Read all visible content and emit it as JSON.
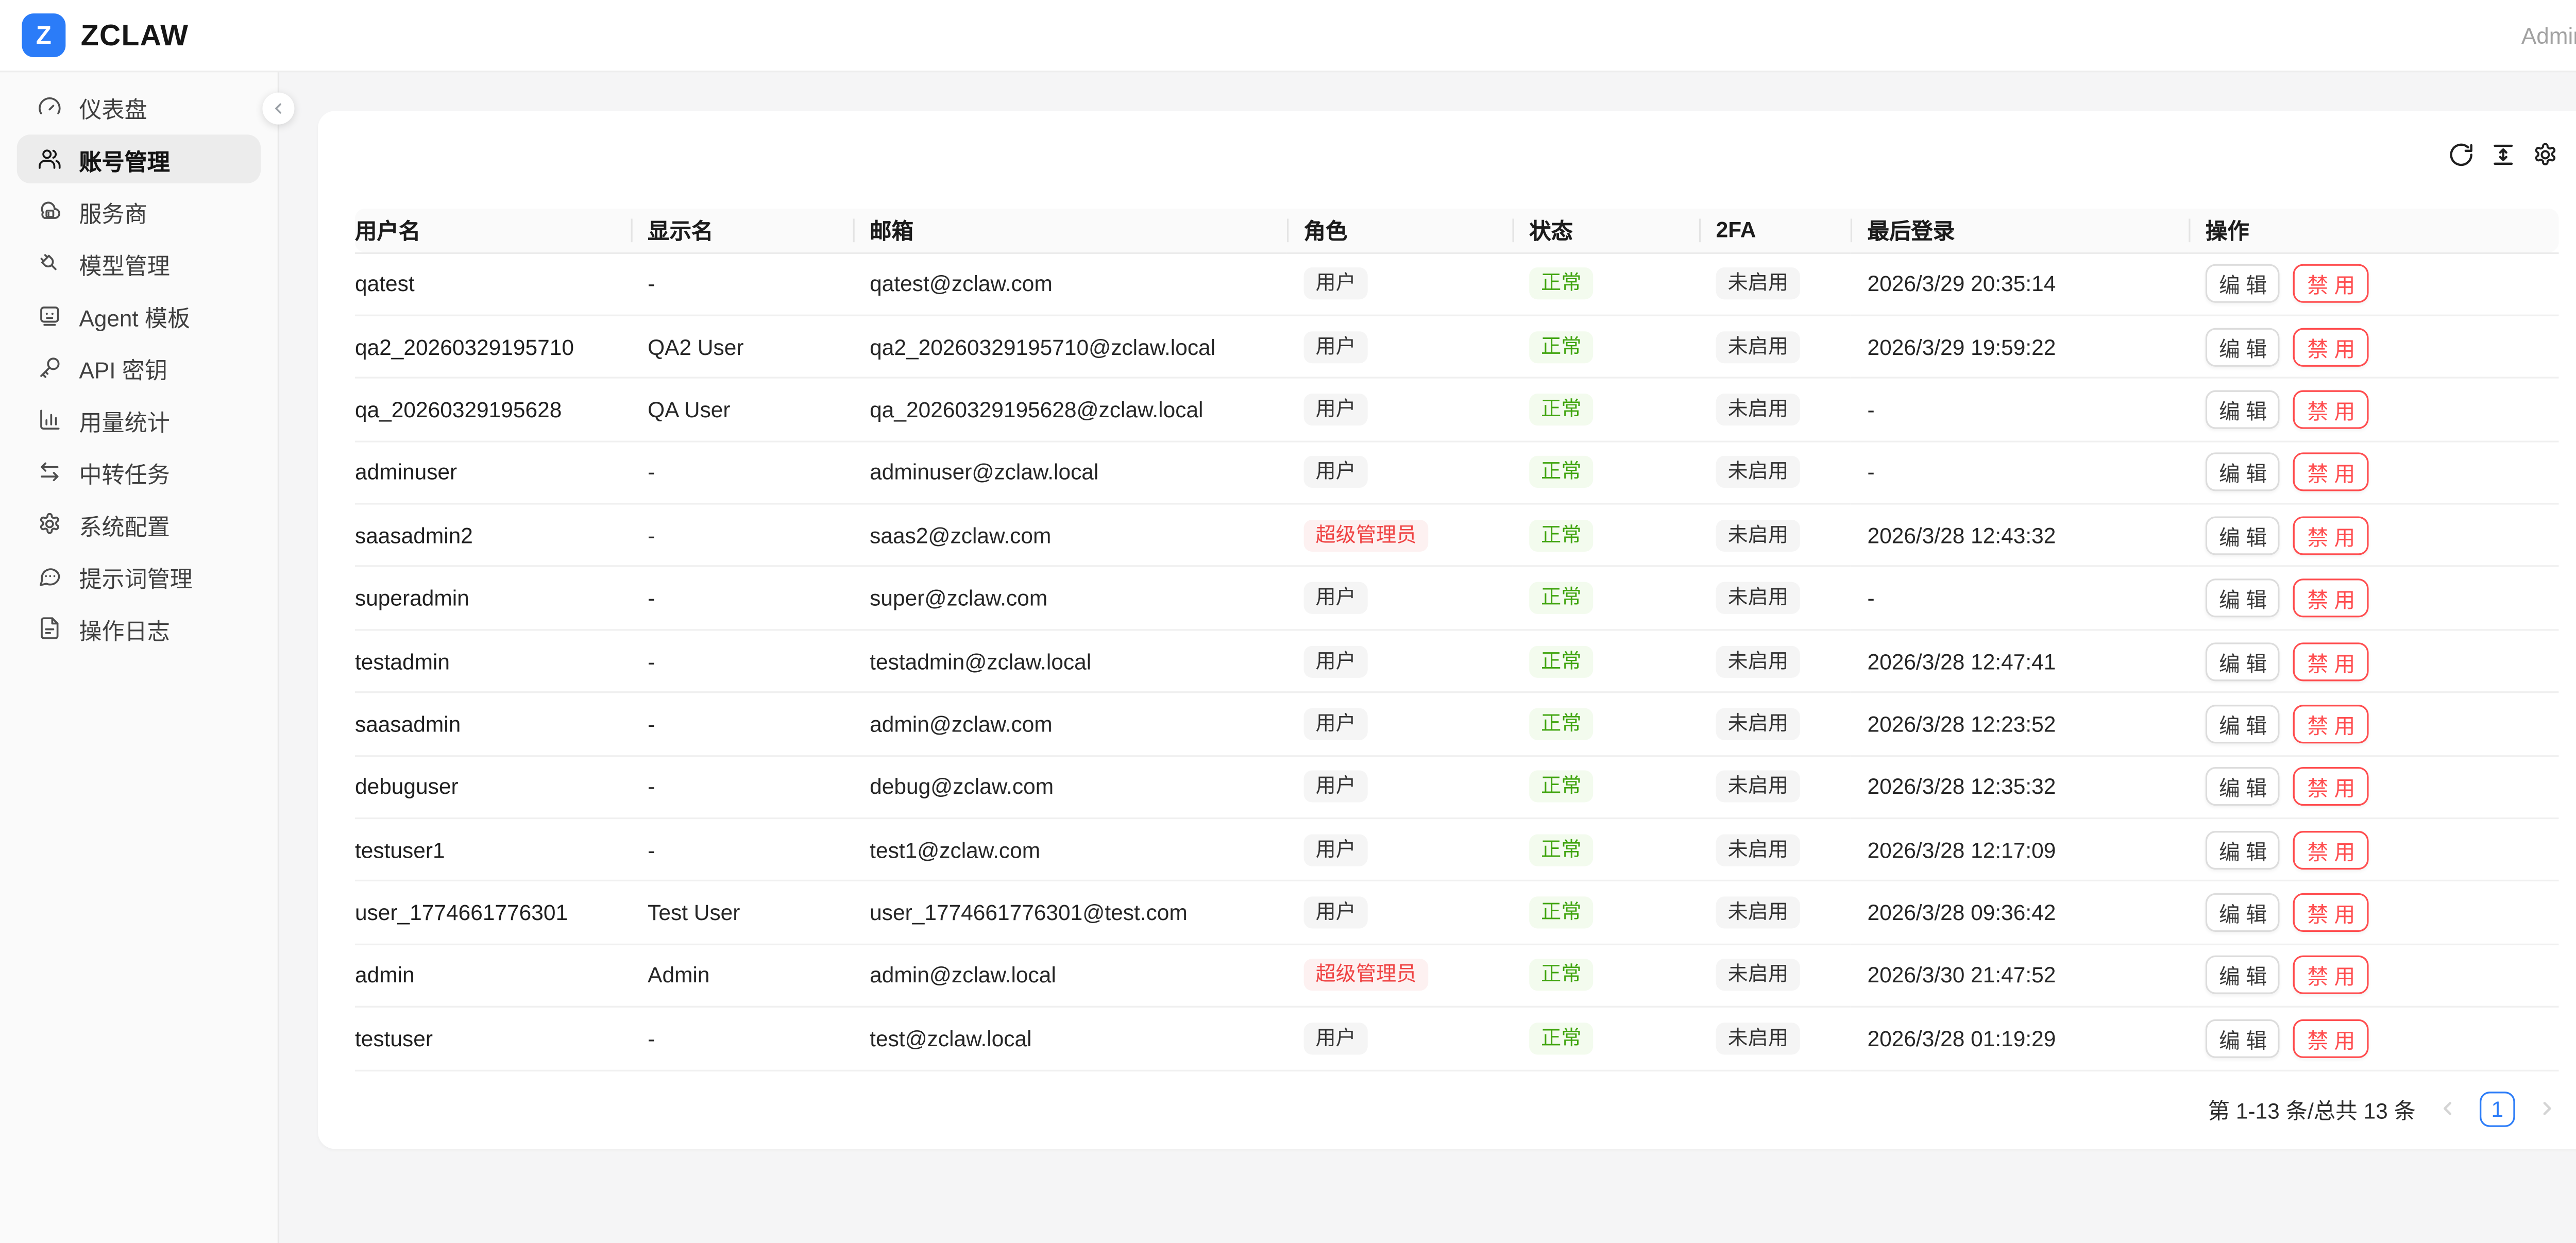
{
  "topbar": {
    "logo_letter": "Z",
    "brand": "ZCLAW",
    "user": "Admin"
  },
  "sidebar": {
    "items": [
      {
        "label": "仪表盘",
        "icon": "gauge",
        "active": false
      },
      {
        "label": "账号管理",
        "icon": "users",
        "active": true
      },
      {
        "label": "服务商",
        "icon": "cloud-server",
        "active": false
      },
      {
        "label": "模型管理",
        "icon": "plug",
        "active": false
      },
      {
        "label": "Agent 模板",
        "icon": "bot",
        "active": false
      },
      {
        "label": "API 密钥",
        "icon": "key",
        "active": false
      },
      {
        "label": "用量统计",
        "icon": "chart",
        "active": false
      },
      {
        "label": "中转任务",
        "icon": "transfer",
        "active": false
      },
      {
        "label": "系统配置",
        "icon": "gear",
        "active": false
      },
      {
        "label": "提示词管理",
        "icon": "message-dots",
        "active": false
      },
      {
        "label": "操作日志",
        "icon": "file-text",
        "active": false
      }
    ]
  },
  "toolbar": {
    "icons": [
      "refresh",
      "row-height",
      "settings"
    ]
  },
  "table": {
    "columns": [
      "用户名",
      "显示名",
      "邮箱",
      "角色",
      "状态",
      "2FA",
      "最后登录",
      "操作"
    ],
    "actions": {
      "edit": "编 辑",
      "disable": "禁 用"
    },
    "rows": [
      {
        "username": "qatest",
        "display_name": "-",
        "email": "qatest@zclaw.com",
        "role": "用户",
        "role_type": "user",
        "status": "正常",
        "twofa": "未启用",
        "last_login": "2026/3/29 20:35:14"
      },
      {
        "username": "qa2_20260329195710",
        "display_name": "QA2 User",
        "email": "qa2_20260329195710@zclaw.local",
        "role": "用户",
        "role_type": "user",
        "status": "正常",
        "twofa": "未启用",
        "last_login": "2026/3/29 19:59:22"
      },
      {
        "username": "qa_20260329195628",
        "display_name": "QA User",
        "email": "qa_20260329195628@zclaw.local",
        "role": "用户",
        "role_type": "user",
        "status": "正常",
        "twofa": "未启用",
        "last_login": "-"
      },
      {
        "username": "adminuser",
        "display_name": "-",
        "email": "adminuser@zclaw.local",
        "role": "用户",
        "role_type": "user",
        "status": "正常",
        "twofa": "未启用",
        "last_login": "-"
      },
      {
        "username": "saasadmin2",
        "display_name": "-",
        "email": "saas2@zclaw.com",
        "role": "超级管理员",
        "role_type": "admin",
        "status": "正常",
        "twofa": "未启用",
        "last_login": "2026/3/28 12:43:32"
      },
      {
        "username": "superadmin",
        "display_name": "-",
        "email": "super@zclaw.com",
        "role": "用户",
        "role_type": "user",
        "status": "正常",
        "twofa": "未启用",
        "last_login": "-"
      },
      {
        "username": "testadmin",
        "display_name": "-",
        "email": "testadmin@zclaw.local",
        "role": "用户",
        "role_type": "user",
        "status": "正常",
        "twofa": "未启用",
        "last_login": "2026/3/28 12:47:41"
      },
      {
        "username": "saasadmin",
        "display_name": "-",
        "email": "admin@zclaw.com",
        "role": "用户",
        "role_type": "user",
        "status": "正常",
        "twofa": "未启用",
        "last_login": "2026/3/28 12:23:52"
      },
      {
        "username": "debuguser",
        "display_name": "-",
        "email": "debug@zclaw.com",
        "role": "用户",
        "role_type": "user",
        "status": "正常",
        "twofa": "未启用",
        "last_login": "2026/3/28 12:35:32"
      },
      {
        "username": "testuser1",
        "display_name": "-",
        "email": "test1@zclaw.com",
        "role": "用户",
        "role_type": "user",
        "status": "正常",
        "twofa": "未启用",
        "last_login": "2026/3/28 12:17:09"
      },
      {
        "username": "user_1774661776301",
        "display_name": "Test User",
        "email": "user_1774661776301@test.com",
        "role": "用户",
        "role_type": "user",
        "status": "正常",
        "twofa": "未启用",
        "last_login": "2026/3/28 09:36:42"
      },
      {
        "username": "admin",
        "display_name": "Admin",
        "email": "admin@zclaw.local",
        "role": "超级管理员",
        "role_type": "admin",
        "status": "正常",
        "twofa": "未启用",
        "last_login": "2026/3/30 21:47:52"
      },
      {
        "username": "testuser",
        "display_name": "-",
        "email": "test@zclaw.local",
        "role": "用户",
        "role_type": "user",
        "status": "正常",
        "twofa": "未启用",
        "last_login": "2026/3/28 01:19:29"
      }
    ]
  },
  "pagination": {
    "summary": "第 1-13 条/总共 13 条",
    "page": "1"
  },
  "colors": {
    "brand_blue": "#2b7cf8",
    "status_green": "#3fa40e",
    "status_green_bg": "#f3fbee",
    "danger_red": "#ff4d4f",
    "admin_red": "#ef4444",
    "admin_red_bg": "#fdf1f1",
    "badge_gray_bg": "#f5f5f5"
  }
}
